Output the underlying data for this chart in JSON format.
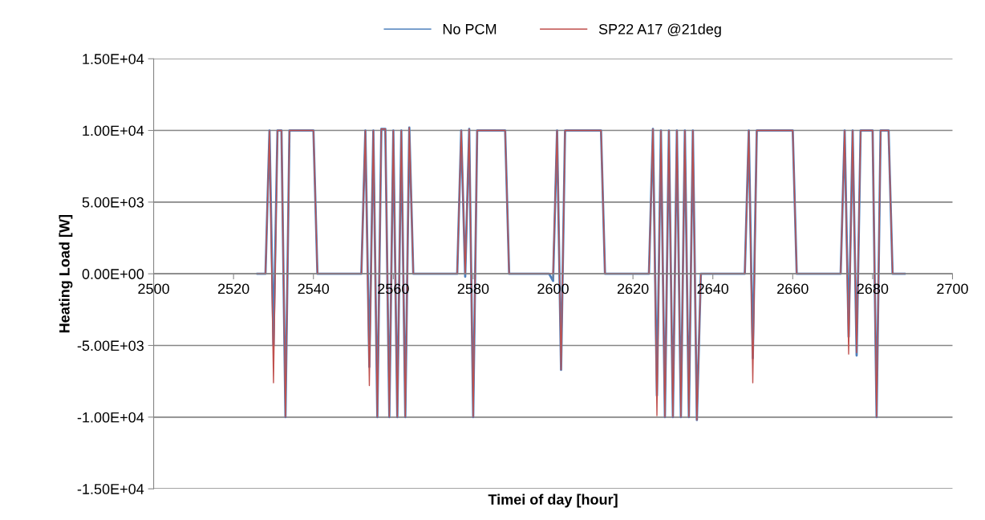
{
  "chart_data": {
    "type": "line",
    "xlabel": "Timei of day [hour]",
    "ylabel": "Heating Load [W]",
    "x": [
      2526,
      2528,
      2529,
      2530,
      2531,
      2532,
      2533,
      2534,
      2540,
      2541,
      2552,
      2553,
      2554,
      2555,
      2556,
      2557,
      2558,
      2559,
      2560,
      2561,
      2562,
      2563,
      2564,
      2565,
      2576,
      2577,
      2578,
      2579,
      2580,
      2581,
      2588,
      2589,
      2599,
      2600,
      2601,
      2602,
      2603,
      2612,
      2613,
      2624,
      2625,
      2626,
      2627,
      2628,
      2629,
      2630,
      2631,
      2632,
      2633,
      2634,
      2635,
      2636,
      2637,
      2648,
      2649,
      2650,
      2651,
      2660,
      2661,
      2672,
      2673,
      2674,
      2675,
      2676,
      2677,
      2680,
      2681,
      2682,
      2684,
      2685,
      2688
    ],
    "series": [
      {
        "name": "No PCM",
        "color": "#4f81bd",
        "values": [
          0,
          0,
          10000,
          -5000,
          10000,
          10000,
          -10000,
          10000,
          10000,
          0,
          0,
          10000,
          -6500,
          10000,
          -10000,
          10100,
          10100,
          -10000,
          10000,
          -10000,
          10000,
          -10000,
          10200,
          0,
          0,
          10000,
          -200,
          10100,
          -10000,
          10000,
          10000,
          0,
          0,
          -500,
          10000,
          -6700,
          10000,
          10000,
          0,
          0,
          10100,
          -8500,
          10000,
          -10000,
          10000,
          -10000,
          10000,
          -10000,
          10000,
          -10000,
          10000,
          -10200,
          0,
          0,
          10000,
          -5900,
          10000,
          10000,
          0,
          0,
          10000,
          -4400,
          10000,
          -5700,
          10000,
          10000,
          -10000,
          10000,
          10000,
          0,
          0
        ]
      },
      {
        "name": "SP22 A17 @21deg",
        "color": "#c0504d",
        "values": [
          0,
          0,
          10000,
          -7600,
          10000,
          10000,
          -10000,
          10000,
          10000,
          0,
          0,
          10000,
          -7800,
          10000,
          -10000,
          10100,
          10100,
          -10000,
          10000,
          -10000,
          10000,
          -10000,
          10200,
          0,
          0,
          10000,
          0,
          10100,
          -10000,
          10000,
          10000,
          0,
          0,
          0,
          10000,
          -6700,
          10000,
          10000,
          0,
          0,
          10100,
          -9900,
          10000,
          -10000,
          10000,
          -10000,
          10000,
          -10000,
          10000,
          -10000,
          10000,
          -10200,
          0,
          0,
          10000,
          -7600,
          10000,
          10000,
          0,
          0,
          10000,
          -5600,
          10000,
          -5500,
          10000,
          10000,
          -10000,
          10000,
          10000,
          0,
          0
        ]
      }
    ],
    "xlim": [
      2500,
      2700
    ],
    "xticks": [
      2500,
      2520,
      2540,
      2560,
      2580,
      2600,
      2620,
      2640,
      2660,
      2680,
      2700
    ],
    "ylim": [
      -15000,
      15000
    ],
    "yticks": [
      {
        "value": -15000,
        "label": "-1.50E+04"
      },
      {
        "value": -10000,
        "label": "-1.00E+04"
      },
      {
        "value": -5000,
        "label": "-5.00E+03"
      },
      {
        "value": 0,
        "label": "0.00E+00"
      },
      {
        "value": 5000,
        "label": "5.00E+03"
      },
      {
        "value": 10000,
        "label": "1.00E+04"
      },
      {
        "value": 15000,
        "label": "1.50E+04"
      }
    ],
    "grid": "y",
    "legend": "top",
    "marker": "none",
    "line_style": "solid"
  }
}
